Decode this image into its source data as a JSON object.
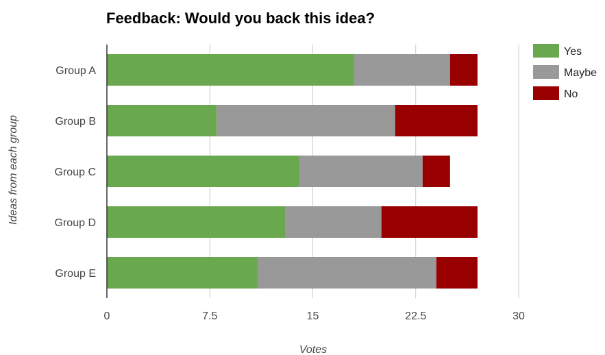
{
  "chart_data": {
    "type": "bar",
    "orientation": "horizontal",
    "stacked": true,
    "title": "Feedback: Would you back this idea?",
    "xlabel": "Votes",
    "ylabel": "Ideas from each group",
    "categories": [
      "Group A",
      "Group B",
      "Group C",
      "Group D",
      "Group E"
    ],
    "series": [
      {
        "name": "Yes",
        "color": "#6aa84f",
        "values": [
          18,
          8,
          14,
          13,
          11
        ]
      },
      {
        "name": "Maybe",
        "color": "#999999",
        "values": [
          7,
          13,
          9,
          7,
          13
        ]
      },
      {
        "name": "No",
        "color": "#990000",
        "values": [
          2,
          6,
          2,
          7,
          3
        ]
      }
    ],
    "xlim": [
      0,
      30
    ],
    "xticks": [
      "0",
      "7.5",
      "15",
      "22.5",
      "30"
    ],
    "xtick_values": [
      0,
      7.5,
      15,
      22.5,
      30
    ],
    "grid": true,
    "legend_position": "right"
  }
}
